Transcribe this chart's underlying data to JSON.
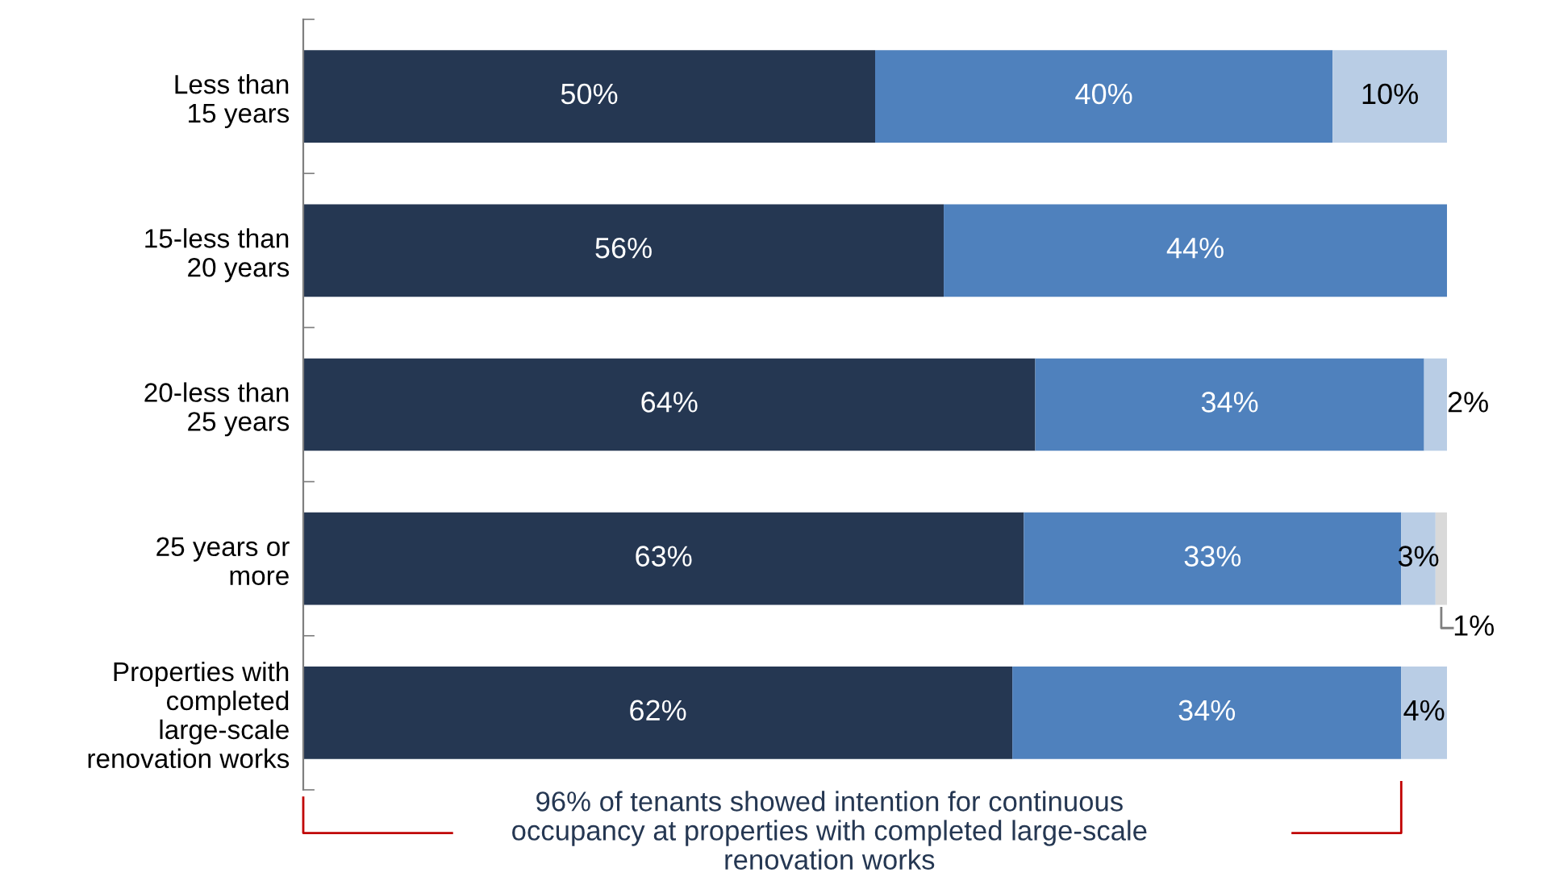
{
  "chart_data": {
    "type": "bar",
    "orientation": "horizontal",
    "stacked": true,
    "grid": false,
    "tick_labels": "y",
    "categories": [
      "Less than\n15 years",
      "15-less than\n20 years",
      "20-less than\n25 years",
      "25 years or\nmore",
      "Properties with\ncompleted\nlarge-scale\nrenovation works"
    ],
    "series": [
      {
        "color": "#253752",
        "values": [
          50,
          56,
          64,
          63,
          62
        ],
        "value_labels": [
          "50%",
          "56%",
          "64%",
          "63%",
          "62%"
        ]
      },
      {
        "color": "#4f81bd",
        "values": [
          40,
          44,
          34,
          33,
          34
        ],
        "value_labels": [
          "40%",
          "44%",
          "34%",
          "33%",
          "34%"
        ]
      },
      {
        "color": "#b9cde5",
        "values": [
          10,
          0,
          2,
          3,
          4
        ],
        "value_labels": [
          "10%",
          null,
          "2%",
          "3%",
          "4%"
        ]
      },
      {
        "color": "#d9d9d9",
        "values": [
          0,
          0,
          0,
          1,
          0
        ],
        "value_labels": [
          null,
          null,
          null,
          "1%",
          null
        ]
      }
    ],
    "annotations": [
      "96% of tenants showed intention for continuous\noccupancy at properties with completed large-scale\nrenovation works"
    ]
  }
}
